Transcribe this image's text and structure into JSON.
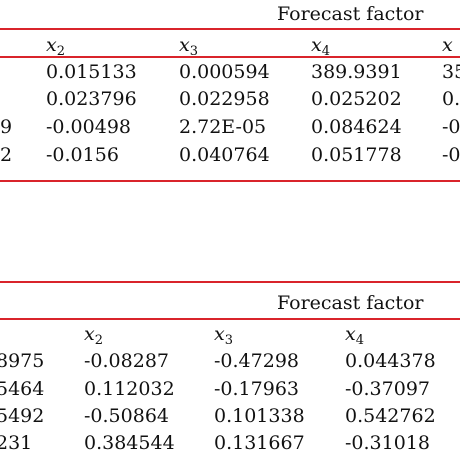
{
  "colors": {
    "rule": "#d9242b",
    "text": "#111111",
    "background": "#ffffff"
  },
  "table1": {
    "group_header": "Forecast factor",
    "columns": [
      {
        "base": "x",
        "sub": "2"
      },
      {
        "base": "x",
        "sub": "3"
      },
      {
        "base": "x",
        "sub": "4"
      },
      {
        "base": "x",
        "sub": ""
      }
    ],
    "rows": [
      {
        "lead": "",
        "cells": [
          "0.015133",
          "0.000594",
          "389.9391",
          "35"
        ]
      },
      {
        "lead": "",
        "cells": [
          "0.023796",
          "0.022958",
          "0.025202",
          "0."
        ]
      },
      {
        "lead": "9",
        "cells": [
          "-0.00498",
          "2.72E-05",
          "0.084624",
          "-0"
        ]
      },
      {
        "lead": "2",
        "cells": [
          "-0.0156",
          "0.040764",
          "0.051778",
          "-0"
        ]
      }
    ]
  },
  "table2": {
    "group_header": "Forecast factor",
    "columns": [
      {
        "base": "x",
        "sub": "2"
      },
      {
        "base": "x",
        "sub": "3"
      },
      {
        "base": "x",
        "sub": "4"
      }
    ],
    "rows": [
      {
        "lead": "8975",
        "cells": [
          "-0.08287",
          "-0.47298",
          "0.044378"
        ]
      },
      {
        "lead": "5464",
        "cells": [
          "0.112032",
          "-0.17963",
          "-0.37097"
        ]
      },
      {
        "lead": "5492",
        "cells": [
          "-0.50864",
          "0.101338",
          "0.542762"
        ]
      },
      {
        "lead": "231",
        "cells": [
          "0.384544",
          "0.131667",
          "-0.31018"
        ]
      }
    ]
  }
}
